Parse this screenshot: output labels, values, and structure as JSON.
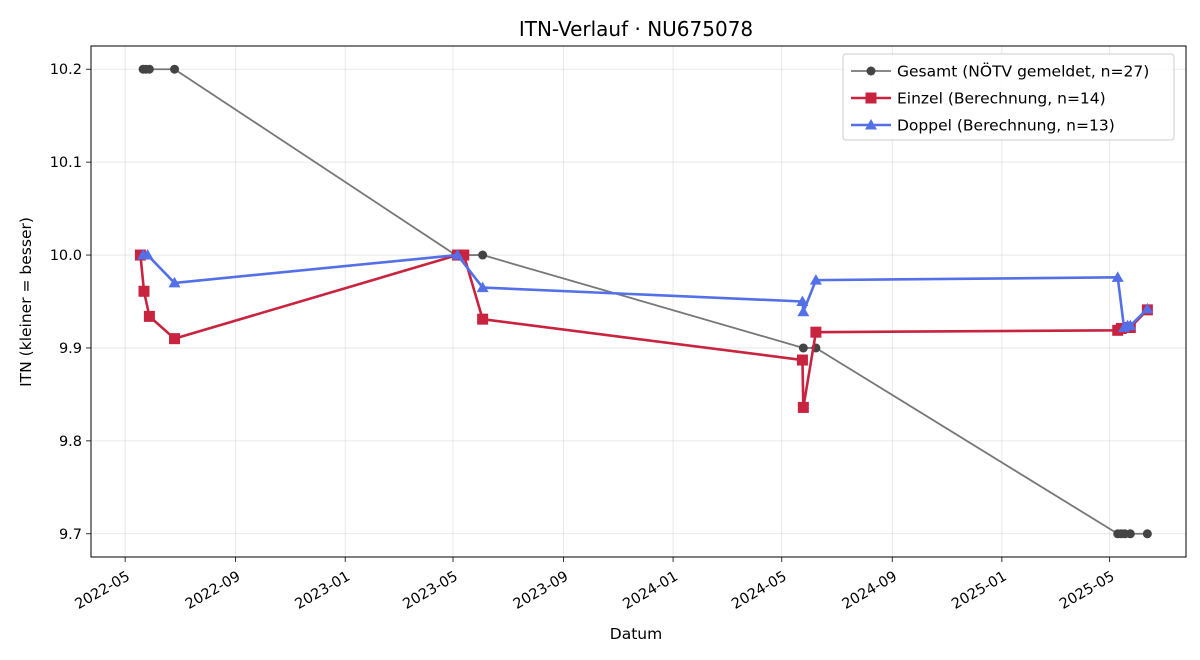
{
  "chart_data": {
    "type": "line",
    "title": "ITN-Verlauf · NU675078",
    "xlabel": "Datum",
    "ylabel": "ITN  (kleiner = besser)",
    "x_type": "date",
    "xlim": [
      "2022-03-24",
      "2025-07-25"
    ],
    "ylim": [
      9.675,
      10.225
    ],
    "x_ticks": [
      "2022-05",
      "2022-09",
      "2023-01",
      "2023-05",
      "2023-09",
      "2024-01",
      "2024-05",
      "2024-09",
      "2025-01",
      "2025-05"
    ],
    "y_ticks": [
      9.7,
      9.8,
      9.9,
      10.0,
      10.1,
      10.2
    ],
    "grid": true,
    "legend_position": "top-right",
    "series": [
      {
        "name": "Gesamt (NÖTV gemeldet, n=27)",
        "color": "#777777",
        "marker_color": "#444444",
        "marker": "circle",
        "x": [
          "2022-05-21",
          "2022-05-24",
          "2022-05-28",
          "2022-06-25",
          "2023-05-04",
          "2023-05-13",
          "2023-06-03",
          "2024-05-25",
          "2024-06-08",
          "2025-05-10",
          "2025-05-14",
          "2025-05-18",
          "2025-05-24",
          "2025-06-12"
        ],
        "y": [
          10.2,
          10.2,
          10.2,
          10.2,
          10.0,
          10.0,
          10.0,
          9.9,
          9.9,
          9.7,
          9.7,
          9.7,
          9.7,
          9.7
        ]
      },
      {
        "name": "Einzel (Berechnung, n=14)",
        "color": "#c8233f",
        "marker": "square",
        "x": [
          "2022-05-18",
          "2022-05-22",
          "2022-05-28",
          "2022-06-25",
          "2023-05-06",
          "2023-05-13",
          "2023-06-03",
          "2024-05-24",
          "2024-05-25",
          "2024-06-08",
          "2025-05-10",
          "2025-05-14",
          "2025-05-24",
          "2025-06-12"
        ],
        "y": [
          10.0,
          9.961,
          9.934,
          9.91,
          10.0,
          10.0,
          9.931,
          9.887,
          9.836,
          9.917,
          9.919,
          9.921,
          9.922,
          9.941
        ]
      },
      {
        "name": "Doppel (Berechnung, n=13)",
        "color": "#5470e8",
        "marker": "triangle",
        "x": [
          "2022-05-21",
          "2022-05-26",
          "2022-06-25",
          "2023-05-06",
          "2023-06-03",
          "2024-05-24",
          "2024-05-25",
          "2024-06-08",
          "2025-05-10",
          "2025-05-17",
          "2025-05-21",
          "2025-05-24",
          "2025-06-12"
        ],
        "y": [
          10.0,
          10.0,
          9.97,
          10.0,
          9.965,
          9.95,
          9.939,
          9.973,
          9.976,
          9.922,
          9.924,
          9.924,
          9.942
        ]
      }
    ]
  }
}
